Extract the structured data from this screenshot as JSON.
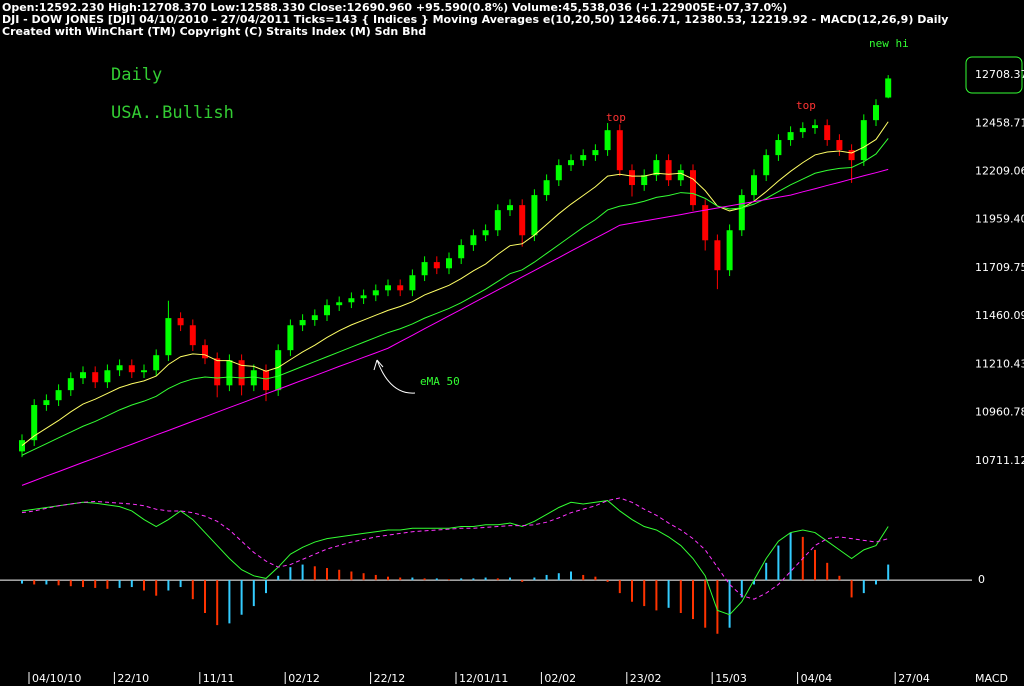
{
  "chart_data": {
    "type": "candlestick",
    "header": [
      "Open:12592.230  High:12708.370  Low:12588.330  Close:12690.960  +95.590(0.8%)  Volume:45,538,036 (+1.229005E+07,37.0%)",
      "DJI - DOW JONES [DJI]  04/10/2010 - 27/04/2011  Ticks=143  { Indices } Moving Averages e(10,20,50) 12466.71,  12380.53,  12219.92 - MACD(12,26,9)    Daily",
      "Created with WinChart (TM)  Copyright (C) Straits Index (M) Sdn Bhd"
    ],
    "annotations": [
      "Daily",
      "USA..Bullish",
      "top",
      "top",
      "new hi",
      "eMA 50"
    ],
    "categories": [
      "04/10/10",
      null,
      null,
      null,
      null,
      null,
      null,
      "22/10",
      null,
      null,
      null,
      null,
      null,
      null,
      "11/11",
      null,
      null,
      null,
      null,
      null,
      null,
      "02/12",
      null,
      null,
      null,
      null,
      null,
      null,
      "22/12",
      null,
      null,
      null,
      null,
      null,
      null,
      "12/01/11",
      null,
      null,
      null,
      null,
      null,
      null,
      "02/02",
      null,
      null,
      null,
      null,
      null,
      null,
      "23/02",
      null,
      null,
      null,
      null,
      null,
      null,
      "15/03",
      null,
      null,
      null,
      null,
      null,
      null,
      "04/04",
      null,
      null,
      null,
      null,
      null,
      null,
      null,
      "27/04"
    ],
    "open": [
      10760,
      10818,
      11000,
      11025,
      11077,
      11139,
      11170,
      11118,
      11180,
      11206,
      11170,
      11180,
      11258,
      11450,
      11413,
      11310,
      11242,
      11102,
      11232,
      11102,
      11180,
      11077,
      11284,
      11413,
      11440,
      11465,
      11517,
      11532,
      11553,
      11568,
      11594,
      11620,
      11594,
      11672,
      11740,
      11708,
      11760,
      11828,
      11879,
      11905,
      12009,
      12035,
      11879,
      12087,
      12164,
      12242,
      12268,
      12294,
      12320,
      12423,
      12216,
      12139,
      12190,
      12268,
      12164,
      12216,
      12035,
      11853,
      11698,
      11905,
      12087,
      12190,
      12294,
      12372,
      12413,
      12434,
      12449,
      12372,
      12320,
      12268,
      12475,
      12592.23
    ],
    "high": [
      10848,
      11030,
      11055,
      11107,
      11169,
      11200,
      11200,
      11210,
      11236,
      11236,
      11210,
      11288,
      11540,
      11480,
      11443,
      11340,
      11272,
      11262,
      11262,
      11210,
      11210,
      11314,
      11443,
      11470,
      11495,
      11547,
      11562,
      11583,
      11598,
      11624,
      11650,
      11650,
      11702,
      11770,
      11770,
      11790,
      11858,
      11909,
      11935,
      12039,
      12065,
      12065,
      12117,
      12194,
      12272,
      12298,
      12324,
      12350,
      12460,
      12453,
      12246,
      12220,
      12298,
      12298,
      12246,
      12246,
      12065,
      11883,
      11935,
      12117,
      12220,
      12324,
      12402,
      12443,
      12464,
      12479,
      12479,
      12402,
      12350,
      12505,
      12583,
      12708.37
    ],
    "low": [
      10730,
      10788,
      10970,
      10995,
      11047,
      11109,
      11088,
      11088,
      11150,
      11140,
      11140,
      11150,
      11228,
      11383,
      11280,
      11212,
      11040,
      11072,
      11050,
      11072,
      11020,
      11047,
      11254,
      11383,
      11410,
      11435,
      11487,
      11502,
      11523,
      11538,
      11564,
      11564,
      11564,
      11642,
      11678,
      11678,
      11730,
      11798,
      11849,
      11875,
      11979,
      11820,
      11849,
      12057,
      12134,
      12212,
      12238,
      12264,
      12290,
      12186,
      12080,
      12109,
      12160,
      12134,
      12134,
      12005,
      11800,
      11600,
      11668,
      11875,
      12057,
      12160,
      12264,
      12342,
      12383,
      12404,
      12342,
      12290,
      12150,
      12238,
      12445,
      12588.33
    ],
    "close": [
      10818,
      11000,
      11025,
      11077,
      11139,
      11170,
      11118,
      11180,
      11206,
      11170,
      11180,
      11258,
      11450,
      11413,
      11310,
      11242,
      11102,
      11232,
      11102,
      11180,
      11077,
      11284,
      11413,
      11440,
      11465,
      11517,
      11532,
      11553,
      11568,
      11594,
      11620,
      11594,
      11672,
      11740,
      11708,
      11760,
      11828,
      11879,
      11905,
      12009,
      12035,
      11879,
      12087,
      12164,
      12242,
      12268,
      12294,
      12320,
      12423,
      12216,
      12139,
      12190,
      12268,
      12164,
      12216,
      12035,
      11853,
      11698,
      11905,
      12087,
      12190,
      12294,
      12372,
      12413,
      12434,
      12449,
      12372,
      12320,
      12268,
      12475,
      12553,
      12690.96
    ],
    "up_color": "#00ff00",
    "down_color": "#ff0000",
    "moving_averages": [
      {
        "color": "#ffff66",
        "values": [
          10790,
          10840,
          10880,
          10920,
          10965,
          11005,
          11030,
          11060,
          11090,
          11110,
          11125,
          11150,
          11210,
          11250,
          11265,
          11260,
          11230,
          11230,
          11205,
          11200,
          11175,
          11195,
          11235,
          11275,
          11310,
          11350,
          11385,
          11415,
          11440,
          11465,
          11490,
          11510,
          11535,
          11570,
          11595,
          11620,
          11655,
          11695,
          11730,
          11780,
          11825,
          11835,
          11880,
          11935,
          11990,
          12040,
          12085,
          12130,
          12185,
          12195,
          12185,
          12185,
          12200,
          12195,
          12200,
          12170,
          12110,
          12030,
          12005,
          12020,
          12055,
          12105,
          12160,
          12210,
          12255,
          12295,
          12310,
          12315,
          12305,
          12335,
          12375,
          12466.71
        ]
      },
      {
        "color": "#33ff33",
        "values": [
          10740,
          10770,
          10800,
          10830,
          10860,
          10890,
          10915,
          10945,
          10975,
          11000,
          11020,
          11045,
          11085,
          11115,
          11135,
          11145,
          11140,
          11145,
          11140,
          11145,
          11135,
          11150,
          11175,
          11200,
          11225,
          11250,
          11275,
          11300,
          11325,
          11350,
          11375,
          11395,
          11420,
          11450,
          11475,
          11500,
          11530,
          11565,
          11600,
          11640,
          11680,
          11700,
          11740,
          11785,
          11830,
          11875,
          11920,
          11960,
          12010,
          12030,
          12040,
          12055,
          12075,
          12085,
          12100,
          12095,
          12070,
          12030,
          12015,
          12020,
          12040,
          12070,
          12105,
          12140,
          12170,
          12200,
          12215,
          12225,
          12230,
          12260,
          12300,
          12380.53
        ]
      },
      {
        "color": "#ff00ff",
        "values": [
          10584,
          10608,
          10632,
          10655,
          10679,
          10703,
          10726,
          10750,
          10774,
          10797,
          10821,
          10845,
          10868,
          10892,
          10916,
          10939,
          10963,
          10987,
          11010,
          11034,
          11058,
          11081,
          11105,
          11129,
          11152,
          11176,
          11200,
          11223,
          11247,
          11270,
          11294,
          11328,
          11361,
          11395,
          11428,
          11462,
          11495,
          11529,
          11562,
          11596,
          11629,
          11663,
          11696,
          11730,
          11763,
          11797,
          11830,
          11864,
          11897,
          11931,
          11942,
          11953,
          11964,
          11975,
          11986,
          11998,
          12009,
          12020,
          12031,
          12042,
          12053,
          12064,
          12076,
          12087,
          12104,
          12120,
          12137,
          12153,
          12170,
          12187,
          12203,
          12219.92
        ]
      }
    ],
    "ylim": [
      10560,
      12890
    ],
    "yticks": [
      12708.37,
      12458.71,
      12209.06,
      {
        "value": 11959.4,
        "label": "11959.40"
      },
      11709.75,
      11460.09,
      11210.43,
      10960.78,
      10711.12
    ],
    "macd": {
      "label": "MACD",
      "ylim": [
        -75,
        110
      ],
      "yticks": [
        0
      ],
      "macd": {
        "color": "#33ff33",
        "values": [
          80,
          82,
          84,
          86,
          88,
          90,
          89,
          87,
          85,
          80,
          70,
          62,
          70,
          80,
          70,
          55,
          40,
          25,
          12,
          5,
          2,
          15,
          30,
          38,
          44,
          48,
          50,
          52,
          54,
          56,
          58,
          58,
          60,
          60,
          60,
          60,
          62,
          62,
          64,
          64,
          66,
          62,
          68,
          76,
          84,
          90,
          88,
          90,
          92,
          80,
          70,
          62,
          58,
          50,
          40,
          25,
          5,
          -35,
          -40,
          -25,
          0,
          25,
          45,
          55,
          58,
          55,
          45,
          35,
          25,
          35,
          40,
          62
        ]
      },
      "signal": {
        "color": "#ff33ff",
        "values": [
          78,
          80,
          83,
          86,
          88,
          90,
          91,
          90,
          89,
          88,
          86,
          82,
          80,
          80,
          78,
          74,
          68,
          58,
          45,
          32,
          22,
          15,
          18,
          24,
          30,
          36,
          40,
          44,
          47,
          50,
          52,
          54,
          56,
          57,
          58,
          59,
          60,
          60,
          61,
          62,
          63,
          63,
          64,
          67,
          72,
          78,
          82,
          86,
          92,
          95,
          90,
          82,
          75,
          66,
          58,
          48,
          35,
          15,
          -5,
          -18,
          -22,
          -15,
          -5,
          10,
          25,
          40,
          48,
          50,
          48,
          46,
          44,
          48
        ]
      },
      "histogram": {
        "up_color": "#33ccff",
        "down_color": "#ff3300",
        "values": [
          -4,
          -5,
          -5,
          -6,
          -7,
          -8,
          -9,
          -10,
          -9,
          -8,
          -12,
          -18,
          -12,
          -8,
          -22,
          -38,
          -52,
          -50,
          -40,
          -30,
          -15,
          5,
          15,
          18,
          16,
          14,
          12,
          10,
          8,
          6,
          4,
          3,
          3,
          2,
          2,
          1,
          2,
          2,
          3,
          2,
          3,
          -2,
          3,
          6,
          8,
          10,
          6,
          4,
          -2,
          -15,
          -25,
          -30,
          -35,
          -32,
          -38,
          -45,
          -55,
          -62,
          -55,
          -20,
          -5,
          20,
          40,
          55,
          50,
          35,
          20,
          5,
          -20,
          -15,
          -5,
          18
        ]
      }
    }
  }
}
